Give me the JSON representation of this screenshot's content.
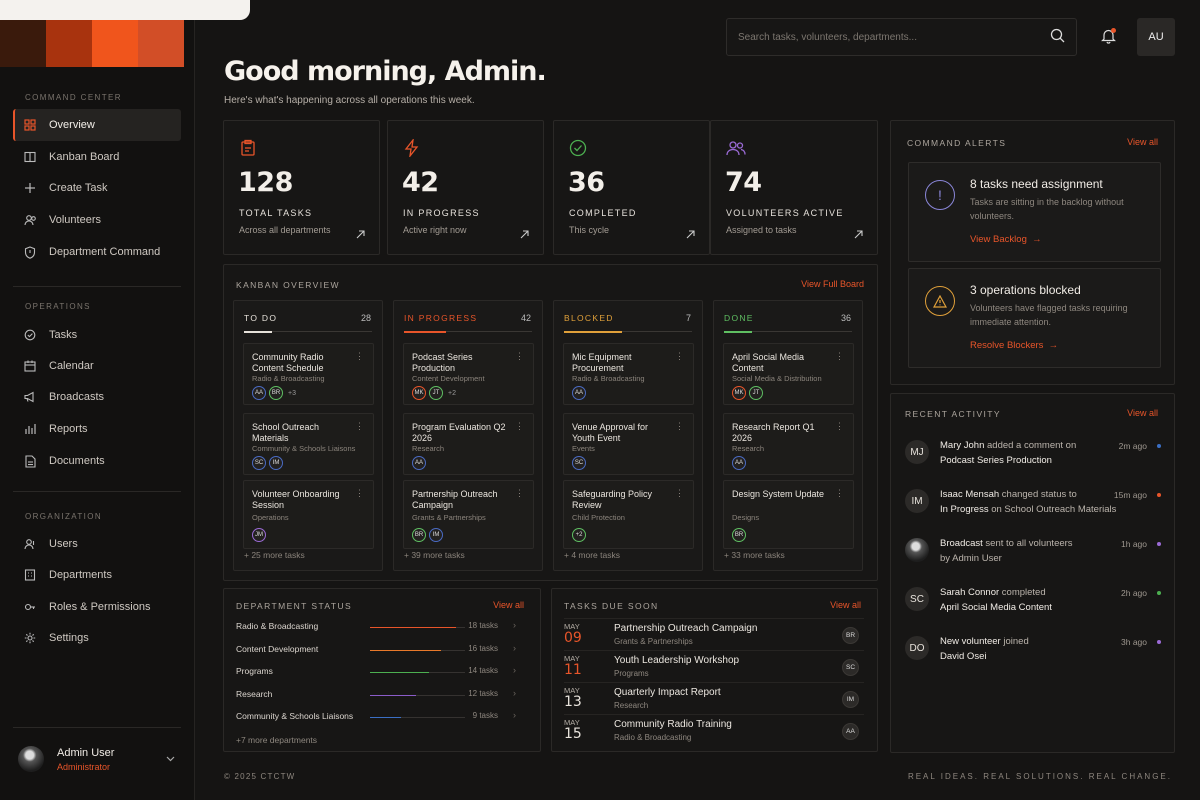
{
  "brand": {
    "colors": [
      "#3a1a0c",
      "#7a2a10",
      "#c4400f",
      "#f0551c"
    ]
  },
  "sidebar": {
    "sections": {
      "command": "COMMAND CENTER",
      "operations": "OPERATIONS",
      "organization": "ORGANIZATION"
    },
    "items": [
      {
        "label": "Overview",
        "icon": "grid-icon",
        "active": true
      },
      {
        "label": "Kanban Board",
        "icon": "columns-icon"
      },
      {
        "label": "Create Task",
        "icon": "plus-icon"
      },
      {
        "label": "Volunteers",
        "icon": "users-icon"
      },
      {
        "label": "Department Command",
        "icon": "shield-icon"
      },
      {
        "label": "Tasks",
        "icon": "task-icon"
      },
      {
        "label": "Calendar",
        "icon": "calendar-icon"
      },
      {
        "label": "Broadcasts",
        "icon": "megaphone-icon"
      },
      {
        "label": "Reports",
        "icon": "chart-icon"
      },
      {
        "label": "Documents",
        "icon": "document-icon"
      },
      {
        "label": "Users",
        "icon": "user-icon"
      },
      {
        "label": "Departments",
        "icon": "building-icon"
      },
      {
        "label": "Roles & Permissions",
        "icon": "key-icon"
      },
      {
        "label": "Settings",
        "icon": "gear-icon"
      }
    ],
    "user": {
      "name": "Admin User",
      "role": "Administrator"
    }
  },
  "header": {
    "greeting": "Good morning, Admin.",
    "subtitle": "Here's what's happening across all operations this week.",
    "search_placeholder": "Search tasks, volunteers, departments...",
    "initials": "AU"
  },
  "stats": [
    {
      "value": "128",
      "label": "TOTAL TASKS",
      "sub": "Across all departments",
      "icon": "clipboard-icon",
      "color": "#e8552a"
    },
    {
      "value": "42",
      "label": "IN PROGRESS",
      "sub": "Active right now",
      "icon": "lightning-icon",
      "color": "#e8552a"
    },
    {
      "value": "36",
      "label": "COMPLETED",
      "sub": "This cycle",
      "icon": "check-circle-icon",
      "color": "#4caf50"
    },
    {
      "value": "74",
      "label": "VOLUNTEERS ACTIVE",
      "sub": "Assigned to tasks",
      "icon": "users-icon",
      "color": "#9b6bd6"
    }
  ],
  "kanban": {
    "title": "KANBAN OVERVIEW",
    "link": "View Full Board",
    "columns": [
      {
        "name": "TO DO",
        "count": "28",
        "color": "#e6e1da",
        "more": "+ 25 more tasks",
        "fill": 0.22,
        "cards": [
          {
            "title": "Community Radio Content Schedule",
            "dept": "Radio & Broadcasting",
            "avatars": [
              "AA",
              "BR"
            ],
            "extra": "+3"
          },
          {
            "title": "School Outreach Materials",
            "dept": "Community & Schools Liaisons",
            "avatars": [
              "SC",
              "IM"
            ],
            "extra": ""
          },
          {
            "title": "Volunteer Onboarding Session",
            "dept": "Operations",
            "avatars": [
              "JM"
            ],
            "extra": ""
          }
        ]
      },
      {
        "name": "IN PROGRESS",
        "count": "42",
        "color": "#e8552a",
        "more": "+ 39 more tasks",
        "fill": 0.33,
        "cards": [
          {
            "title": "Podcast Series Production",
            "dept": "Content Development",
            "avatars": [
              "MK",
              "JT"
            ],
            "extra": "+2"
          },
          {
            "title": "Program Evaluation Q2 2026",
            "dept": "Research",
            "avatars": [
              "AA"
            ],
            "extra": ""
          },
          {
            "title": "Partnership Outreach Campaign",
            "dept": "Grants & Partnerships",
            "avatars": [
              "BR",
              "IM"
            ],
            "extra": ""
          }
        ]
      },
      {
        "name": "BLOCKED",
        "count": "7",
        "color": "#e0a03a",
        "more": "+ 4 more tasks",
        "fill": 0.45,
        "cards": [
          {
            "title": "Mic Equipment Procurement",
            "dept": "Radio & Broadcasting",
            "avatars": [
              "AA"
            ],
            "extra": ""
          },
          {
            "title": "Venue Approval for Youth Event",
            "dept": "Events",
            "avatars": [
              "SC"
            ],
            "extra": ""
          },
          {
            "title": "Safeguarding Policy Review",
            "dept": "Child Protection",
            "avatars": [
              "+2"
            ],
            "extra": ""
          }
        ]
      },
      {
        "name": "DONE",
        "count": "36",
        "color": "#5fbf62",
        "more": "+ 33 more tasks",
        "fill": 0.22,
        "cards": [
          {
            "title": "April Social Media Content",
            "dept": "Social Media & Distribution",
            "avatars": [
              "MK",
              "JT"
            ],
            "extra": ""
          },
          {
            "title": "Research Report Q1 2026",
            "dept": "Research",
            "avatars": [
              "AA"
            ],
            "extra": ""
          },
          {
            "title": "Design System Update",
            "dept": "Designs",
            "avatars": [
              "BR"
            ],
            "extra": ""
          }
        ]
      }
    ]
  },
  "department_status": {
    "title": "DEPARTMENT STATUS",
    "link": "View all",
    "rows": [
      {
        "name": "Radio & Broadcasting",
        "count": "18 tasks",
        "fill": 0.9,
        "color": "#e8552a"
      },
      {
        "name": "Content Development",
        "count": "16 tasks",
        "fill": 0.75,
        "color": "#e8792a"
      },
      {
        "name": "Programs",
        "count": "14 tasks",
        "fill": 0.62,
        "color": "#4caf50"
      },
      {
        "name": "Research",
        "count": "12 tasks",
        "fill": 0.48,
        "color": "#8b5cc9"
      },
      {
        "name": "Community & Schools Liaisons",
        "count": "9 tasks",
        "fill": 0.33,
        "color": "#3b6fc4"
      }
    ],
    "more": "+7 more departments"
  },
  "due_soon": {
    "title": "TASKS DUE SOON",
    "link": "View all",
    "rows": [
      {
        "month": "MAY",
        "day": "09",
        "hot": true,
        "title": "Partnership Outreach Campaign",
        "dept": "Grants & Partnerships",
        "initials": "BR"
      },
      {
        "month": "MAY",
        "day": "11",
        "hot": true,
        "title": "Youth Leadership Workshop",
        "dept": "Programs",
        "initials": "SC"
      },
      {
        "month": "MAY",
        "day": "13",
        "hot": false,
        "title": "Quarterly Impact Report",
        "dept": "Research",
        "initials": "IM"
      },
      {
        "month": "MAY",
        "day": "15",
        "hot": false,
        "title": "Community Radio Training",
        "dept": "Radio & Broadcasting",
        "initials": "AA"
      }
    ]
  },
  "alerts": {
    "title": "COMMAND ALERTS",
    "link": "View all",
    "items": [
      {
        "title": "8 tasks need assignment",
        "desc": "Tasks are sitting in the backlog without volunteers.",
        "action": "View Backlog",
        "icon": "exclamation-icon",
        "color": "#8a86d8"
      },
      {
        "title": "3 operations blocked",
        "desc": "Volunteers have flagged tasks requiring immediate attention.",
        "action": "Resolve Blockers",
        "icon": "warning-icon",
        "color": "#e0a03a"
      }
    ]
  },
  "activity": {
    "title": "RECENT ACTIVITY",
    "link": "View all",
    "items": [
      {
        "initials": "MJ",
        "actor": "Mary John",
        "verb": " added a comment on",
        "target": "Podcast Series Production",
        "tail": "",
        "time": "2m ago",
        "dot": "#3b6fc4"
      },
      {
        "initials": "IM",
        "actor": "Isaac Mensah",
        "verb": " changed status to",
        "target": "In Progress",
        "tail": " on School Outreach Materials",
        "time": "15m ago",
        "dot": "#e8552a"
      },
      {
        "initials": "",
        "actor": "Broadcast",
        "verb": " sent to all volunteers",
        "target": "",
        "tail": "by Admin User",
        "time": "1h ago",
        "dot": "#9b6bd6"
      },
      {
        "initials": "SC",
        "actor": "Sarah Connor",
        "verb": " completed",
        "target": "April Social Media Content",
        "tail": "",
        "time": "2h ago",
        "dot": "#4caf50"
      },
      {
        "initials": "DO",
        "actor": "New volunteer",
        "verb": " joined",
        "target": "David Osei",
        "tail": "",
        "time": "3h ago",
        "dot": "#9b6bd6"
      }
    ]
  },
  "footer": {
    "copyright": "© 2025 CTCTW",
    "tagline": "REAL IDEAS. REAL SOLUTIONS. REAL CHANGE."
  }
}
